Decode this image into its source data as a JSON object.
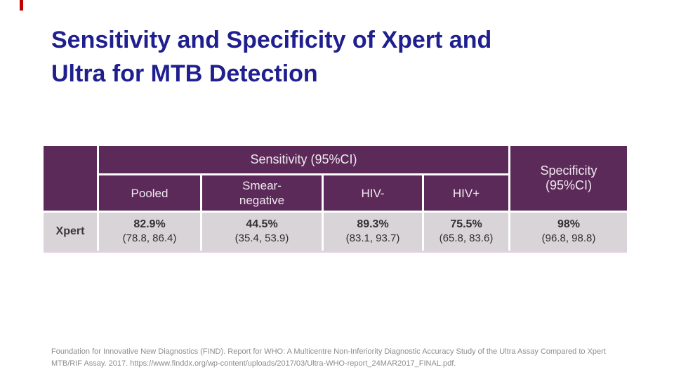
{
  "slide": {
    "title": "Sensitivity and Specificity of Xpert and\nUltra for MTB Detection"
  },
  "table": {
    "header": {
      "sensitivity_group": "Sensitivity (95%CI)",
      "specificity_group": "Specificity\n(95%CI)",
      "sub_columns": [
        "Pooled",
        "Smear-\nnegative",
        "HIV-",
        "HIV+"
      ]
    },
    "rows": [
      {
        "label": "Xpert",
        "cells": [
          {
            "value": "82.9%",
            "ci": "(78.8, 86.4)"
          },
          {
            "value": "44.5%",
            "ci": "(35.4, 53.9)"
          },
          {
            "value": "89.3%",
            "ci": "(83.1, 93.7)"
          },
          {
            "value": "75.5%",
            "ci": "(65.8, 83.6)"
          },
          {
            "value": "98%",
            "ci": "(96.8, 98.8)"
          }
        ]
      }
    ]
  },
  "footer": {
    "line1": "Foundation for Innovative New Diagnostics (FIND). Report for WHO: A Multicentre Non-Inferiority Diagnostic Accuracy Study of the Ultra Assay Compared to Xpert",
    "line2": "MTB/RIF Assay. 2017. https://www.finddx.org/wp-content/uploads/2017/03/Ultra-WHO-report_24MAR2017_FINAL.pdf."
  },
  "colors": {
    "header_purple": "#5b2a59",
    "row_gray": "#d8d4d8",
    "title_navy": "#1f1f8f",
    "footer_gray": "#8c8c8c",
    "accent_red": "#c00000"
  }
}
